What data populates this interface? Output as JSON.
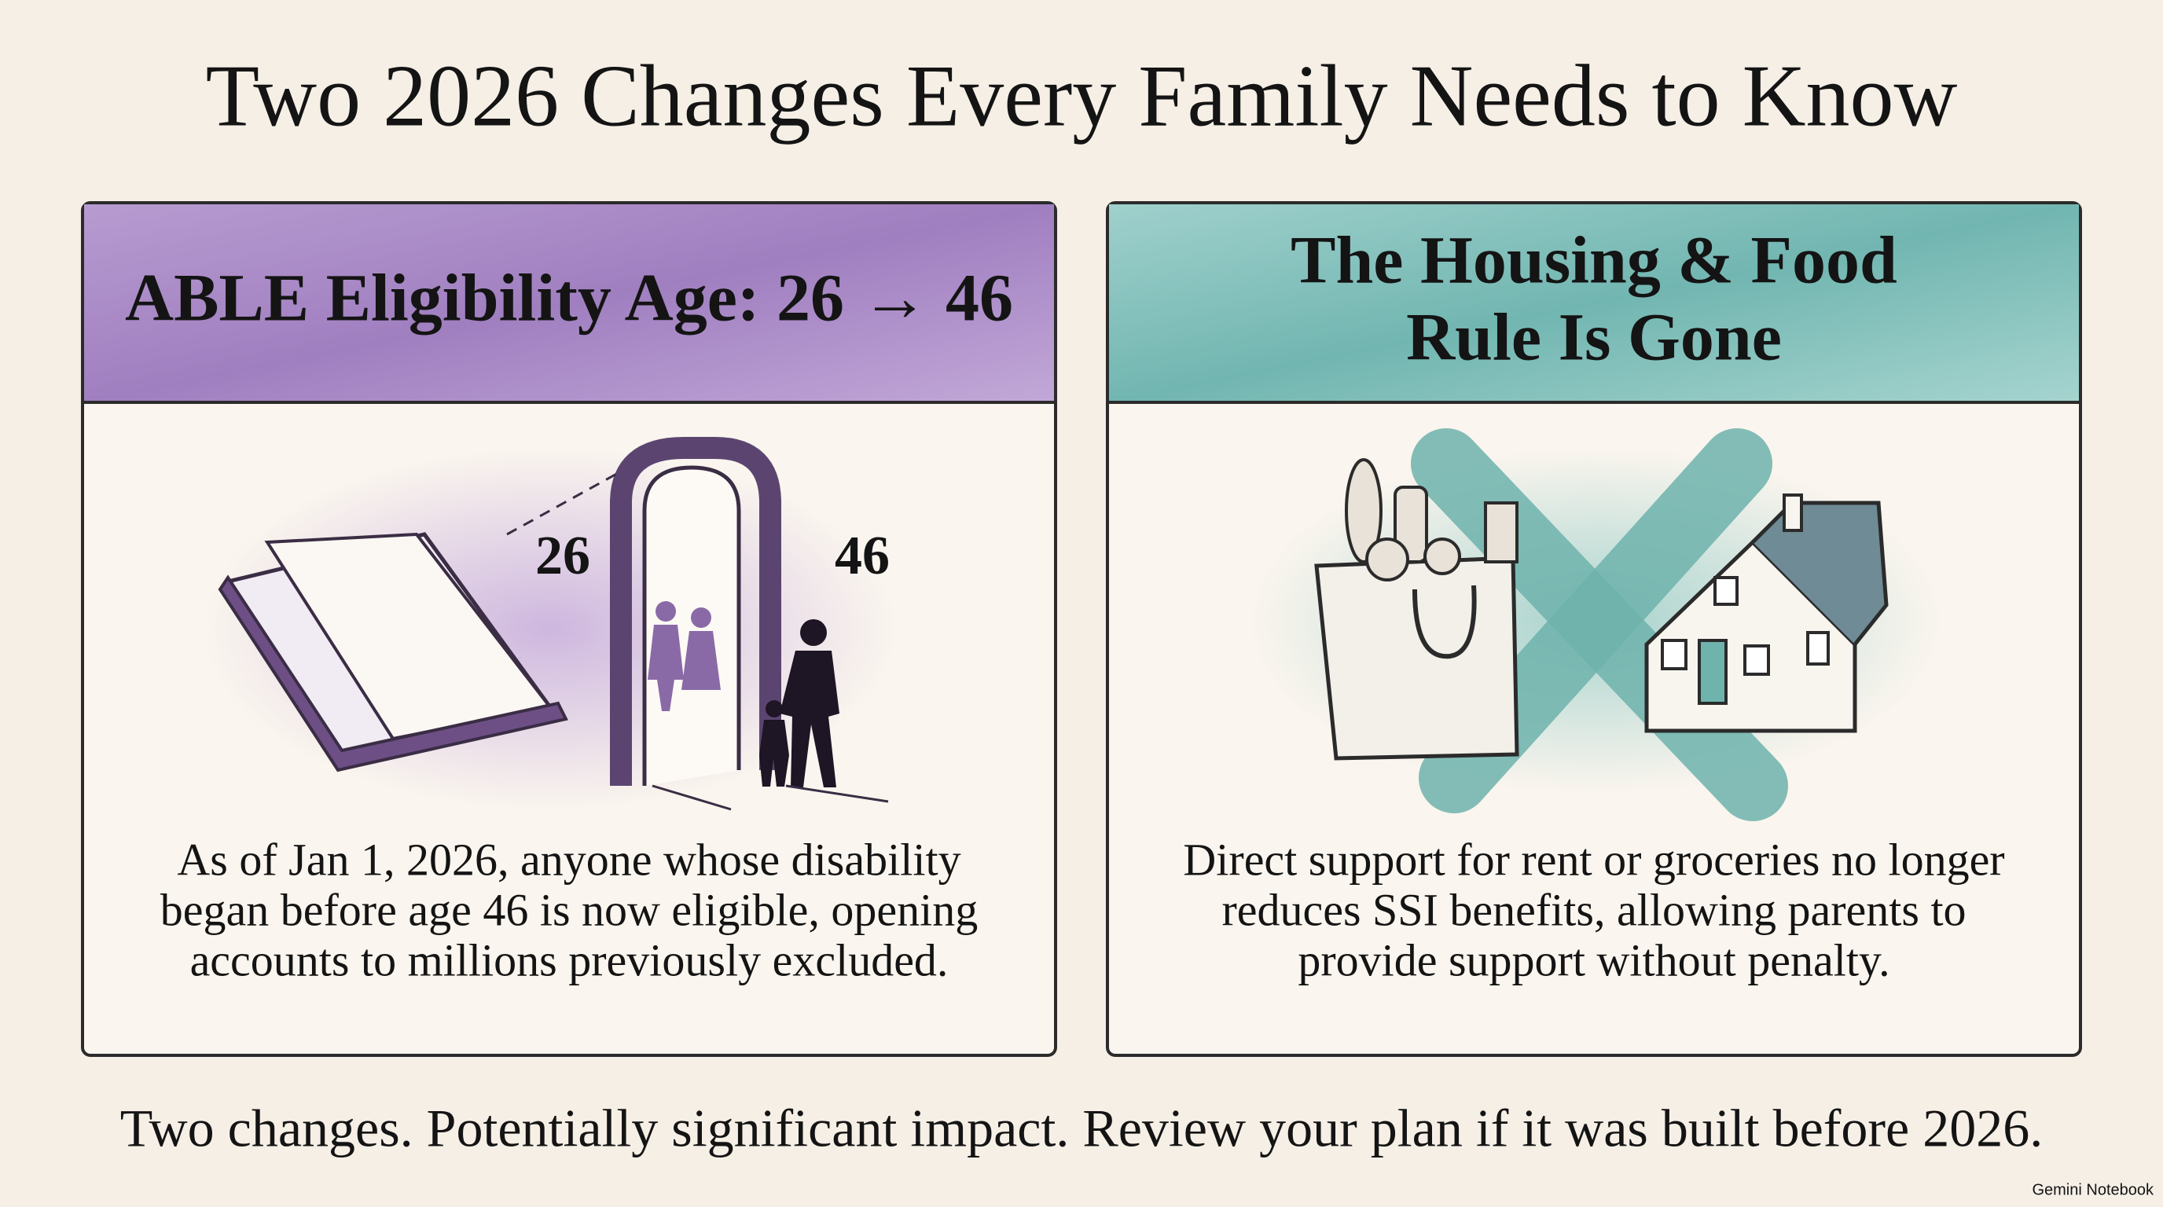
{
  "header": {
    "title": "Two 2026 Changes Every Family Needs to Know"
  },
  "cards": [
    {
      "title_lines": [
        "ABLE Eligibility Age: 26 → 46"
      ],
      "illustration_labels": [
        "26",
        "46"
      ],
      "body_lines": [
        "As of Jan 1, 2026, anyone whose disability",
        "began before age 46 is now eligible, opening",
        "accounts to millions previously excluded."
      ]
    },
    {
      "title_lines": [
        "The Housing & Food",
        "Rule Is Gone"
      ],
      "body_lines": [
        "Direct support for rent or groceries no longer",
        "reduces SSI benefits, allowing parents to",
        "provide support without penalty."
      ]
    }
  ],
  "footer": "Two changes. Potentially significant impact. Review your plan if it was built before 2026.",
  "watermark": "Gemini Notebook"
}
